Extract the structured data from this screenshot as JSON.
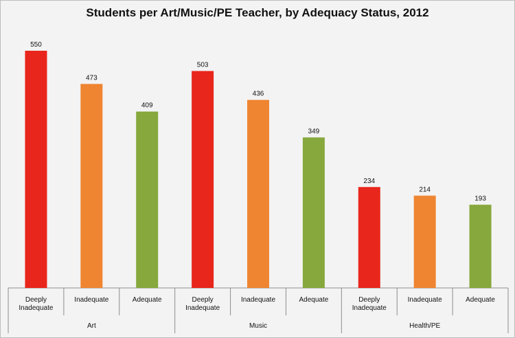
{
  "chart_data": {
    "type": "bar",
    "title": "Students per Art/Music/PE Teacher, by Adequacy Status, 2012",
    "xlabel": "",
    "ylabel": "",
    "ylim": [
      0,
      600
    ],
    "grid": false,
    "legend": "none",
    "groups": [
      {
        "name": "Art",
        "bars": [
          {
            "label": "Deeply Inadequate",
            "value": 550,
            "color": "#e8261b"
          },
          {
            "label": "Inadequate",
            "value": 473,
            "color": "#ef8531"
          },
          {
            "label": "Adequate",
            "value": 409,
            "color": "#86a83c"
          }
        ]
      },
      {
        "name": "Music",
        "bars": [
          {
            "label": "Deeply Inadequate",
            "value": 503,
            "color": "#e8261b"
          },
          {
            "label": "Inadequate",
            "value": 436,
            "color": "#ef8531"
          },
          {
            "label": "Adequate",
            "value": 349,
            "color": "#86a83c"
          }
        ]
      },
      {
        "name": "Health/PE",
        "bars": [
          {
            "label": "Deeply Inadequate",
            "value": 234,
            "color": "#e8261b"
          },
          {
            "label": "Inadequate",
            "value": 214,
            "color": "#ef8531"
          },
          {
            "label": "Adequate",
            "value": 193,
            "color": "#86a83c"
          }
        ]
      }
    ]
  }
}
